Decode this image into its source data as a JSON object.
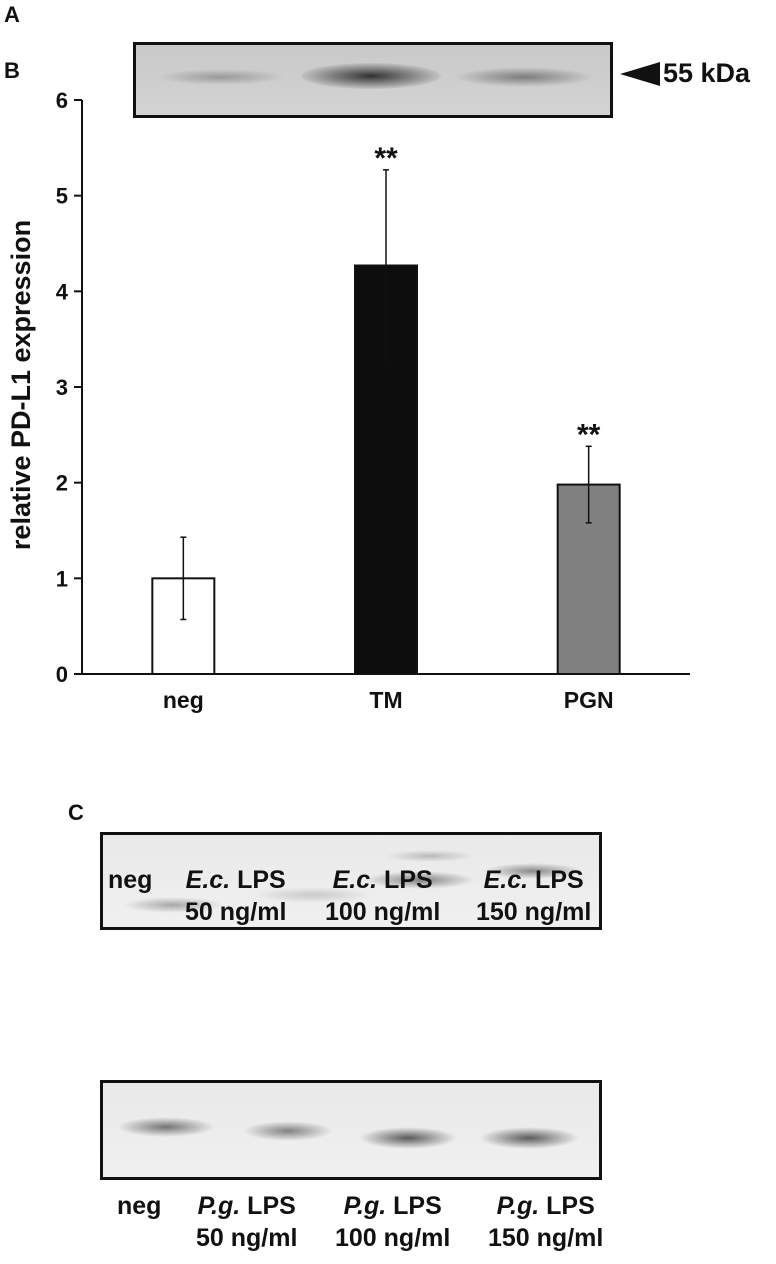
{
  "panels": {
    "a": "A",
    "b": "B",
    "c": "C"
  },
  "blot_a": {
    "marker": "55 kDa"
  },
  "chart_data": {
    "type": "bar",
    "categories": [
      "neg",
      "TM",
      "PGN"
    ],
    "values": [
      1.0,
      4.27,
      1.98
    ],
    "errors": [
      0.43,
      1.0,
      0.4
    ],
    "significance": [
      "",
      "**",
      "**"
    ],
    "bar_colors": [
      "#ffffff",
      "#0d0d0d",
      "#808080"
    ],
    "ylabel": "relative PD-L1 expression",
    "xlabel": "",
    "ylim": [
      0,
      6
    ],
    "yticks": [
      0,
      1,
      2,
      3,
      4,
      5,
      6
    ],
    "grid": false
  },
  "blot_c1": {
    "lanes": [
      {
        "label": "neg",
        "line2": ""
      },
      {
        "label": "E.c.",
        "suffix": " LPS",
        "line2": "50 ng/ml"
      },
      {
        "label": "E.c.",
        "suffix": " LPS",
        "line2": "100 ng/ml"
      },
      {
        "label": "E.c.",
        "suffix": " LPS",
        "line2": "150 ng/ml"
      }
    ]
  },
  "blot_c2": {
    "lanes": [
      {
        "label": "neg",
        "line2": ""
      },
      {
        "label": "P.g.",
        "suffix": " LPS",
        "line2": "50 ng/ml"
      },
      {
        "label": "P.g.",
        "suffix": " LPS",
        "line2": "100 ng/ml"
      },
      {
        "label": "P.g.",
        "suffix": " LPS",
        "line2": "150 ng/ml"
      }
    ]
  }
}
